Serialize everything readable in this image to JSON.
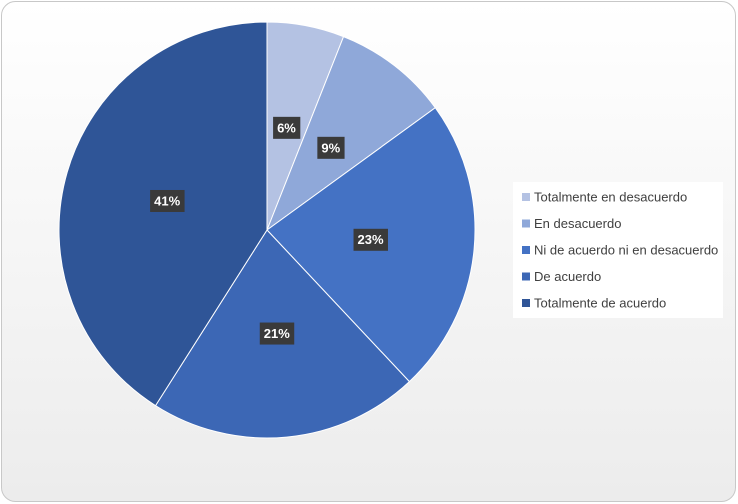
{
  "chart_data": {
    "type": "pie",
    "categories": [
      "Totalmente en desacuerdo",
      "En desacuerdo",
      "Ni de acuerdo ni en desacuerdo",
      "De acuerdo",
      "Totalmente de acuerdo"
    ],
    "values": [
      6,
      9,
      23,
      21,
      41
    ],
    "value_labels": [
      "6%",
      "9%",
      "23%",
      "21%",
      "41%"
    ],
    "colors": [
      "#b4c2e3",
      "#8fa8d9",
      "#4472c4",
      "#3c67b5",
      "#2f5597"
    ],
    "legend": "right"
  }
}
